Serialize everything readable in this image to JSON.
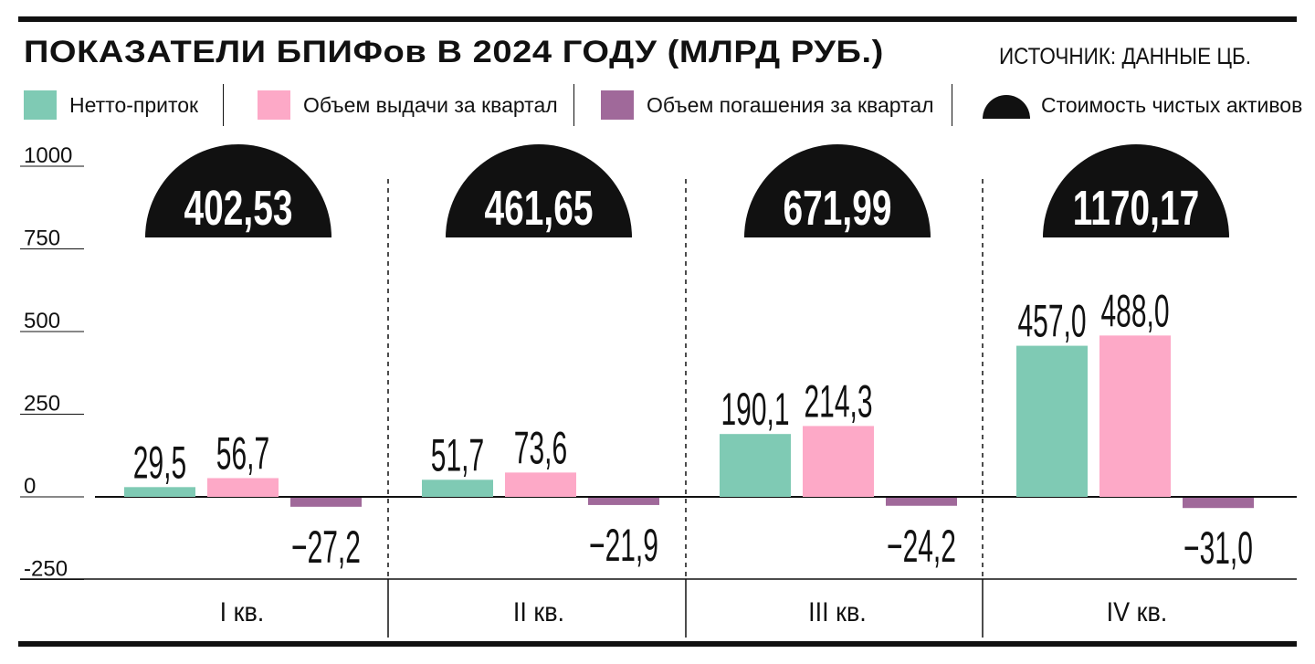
{
  "title": "ПОКАЗАТЕЛИ БПИФов В 2024 ГОДУ  (МЛРД РУБ.)",
  "source": "ИСТОЧНИК: ДАННЫЕ ЦБ.",
  "chart_data": {
    "type": "bar",
    "categories": [
      "I кв.",
      "II кв.",
      "III кв.",
      "IV кв."
    ],
    "series": [
      {
        "name": "Нетто-приток",
        "color": "#7fcab4",
        "values": [
          29.5,
          51.7,
          190.1,
          457.0
        ],
        "labels": [
          "29,5",
          "51,7",
          "190,1",
          "457,0"
        ]
      },
      {
        "name": "Объем выдачи за квартал",
        "color": "#fda9c7",
        "values": [
          56.7,
          73.6,
          214.3,
          488.0
        ],
        "labels": [
          "56,7",
          "73,6",
          "214,3",
          "488,0"
        ]
      },
      {
        "name": "Объем погашения за квартал",
        "color": "#a0699a",
        "values": [
          -27.2,
          -21.9,
          -24.2,
          -31.0
        ],
        "labels": [
          "−27,2",
          "−21,9",
          "−24,2",
          "−31,0"
        ]
      }
    ],
    "net_assets": {
      "name": "Стоимость чистых активов",
      "color": "#111111",
      "values": [
        402.53,
        461.65,
        671.99,
        1170.17
      ],
      "labels": [
        "402,53",
        "461,65",
        "671,99",
        "1170,17"
      ]
    },
    "yticks": [
      1000,
      750,
      500,
      250,
      0,
      -250
    ],
    "ylim": [
      -250,
      1000
    ]
  }
}
